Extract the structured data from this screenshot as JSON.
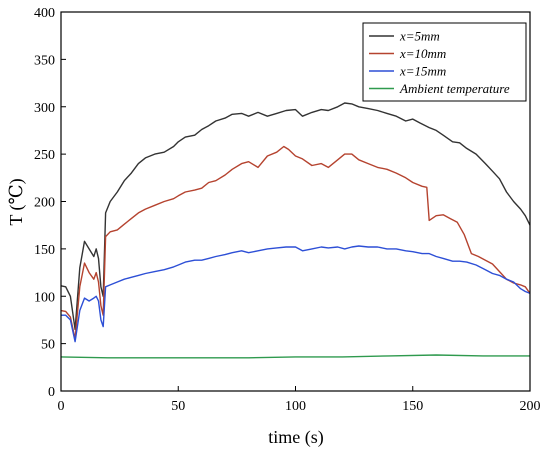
{
  "chart_data": {
    "type": "line",
    "xlabel": "time (s)",
    "ylabel": "T (℃)",
    "xlim": [
      0,
      200
    ],
    "ylim": [
      0,
      400
    ],
    "x_ticks": [
      "0",
      "50",
      "100",
      "150",
      "200"
    ],
    "y_ticks": [
      "0",
      "50",
      "100",
      "150",
      "200",
      "250",
      "300",
      "350",
      "400"
    ],
    "grid": false,
    "legend_position": "top-right",
    "series": [
      {
        "name": "x=5mm",
        "color": "#333333",
        "points": [
          [
            0,
            111
          ],
          [
            2,
            110
          ],
          [
            4,
            100
          ],
          [
            6,
            65
          ],
          [
            8,
            130
          ],
          [
            10,
            158
          ],
          [
            12,
            150
          ],
          [
            14,
            142
          ],
          [
            15,
            150
          ],
          [
            16,
            140
          ],
          [
            17,
            110
          ],
          [
            18,
            100
          ],
          [
            19,
            188
          ],
          [
            21,
            200
          ],
          [
            24,
            210
          ],
          [
            27,
            222
          ],
          [
            30,
            230
          ],
          [
            33,
            240
          ],
          [
            36,
            246
          ],
          [
            40,
            250
          ],
          [
            44,
            252
          ],
          [
            48,
            258
          ],
          [
            50,
            263
          ],
          [
            53,
            268
          ],
          [
            57,
            270
          ],
          [
            60,
            276
          ],
          [
            63,
            280
          ],
          [
            66,
            285
          ],
          [
            70,
            288
          ],
          [
            73,
            292
          ],
          [
            77,
            293
          ],
          [
            80,
            290
          ],
          [
            84,
            294
          ],
          [
            88,
            290
          ],
          [
            92,
            293
          ],
          [
            96,
            296
          ],
          [
            100,
            297
          ],
          [
            103,
            290
          ],
          [
            107,
            294
          ],
          [
            111,
            297
          ],
          [
            114,
            296
          ],
          [
            118,
            300
          ],
          [
            121,
            304
          ],
          [
            124,
            303
          ],
          [
            127,
            300
          ],
          [
            131,
            298
          ],
          [
            135,
            296
          ],
          [
            139,
            293
          ],
          [
            143,
            290
          ],
          [
            147,
            285
          ],
          [
            150,
            287
          ],
          [
            153,
            283
          ],
          [
            157,
            278
          ],
          [
            160,
            275
          ],
          [
            163,
            270
          ],
          [
            167,
            263
          ],
          [
            170,
            262
          ],
          [
            173,
            256
          ],
          [
            177,
            250
          ],
          [
            181,
            240
          ],
          [
            184,
            232
          ],
          [
            187,
            224
          ],
          [
            190,
            210
          ],
          [
            193,
            200
          ],
          [
            196,
            192
          ],
          [
            198,
            185
          ],
          [
            200,
            175
          ]
        ]
      },
      {
        "name": "x=10mm",
        "color": "#b5432f",
        "points": [
          [
            0,
            85
          ],
          [
            2,
            84
          ],
          [
            4,
            78
          ],
          [
            6,
            55
          ],
          [
            8,
            110
          ],
          [
            10,
            135
          ],
          [
            12,
            125
          ],
          [
            14,
            118
          ],
          [
            15,
            125
          ],
          [
            16,
            115
          ],
          [
            17,
            90
          ],
          [
            18,
            80
          ],
          [
            19,
            163
          ],
          [
            21,
            168
          ],
          [
            24,
            170
          ],
          [
            27,
            176
          ],
          [
            30,
            182
          ],
          [
            33,
            188
          ],
          [
            36,
            192
          ],
          [
            40,
            196
          ],
          [
            44,
            200
          ],
          [
            48,
            203
          ],
          [
            50,
            206
          ],
          [
            53,
            210
          ],
          [
            57,
            212
          ],
          [
            60,
            214
          ],
          [
            63,
            220
          ],
          [
            66,
            222
          ],
          [
            70,
            228
          ],
          [
            73,
            234
          ],
          [
            77,
            240
          ],
          [
            80,
            242
          ],
          [
            84,
            236
          ],
          [
            88,
            248
          ],
          [
            92,
            252
          ],
          [
            95,
            258
          ],
          [
            97,
            255
          ],
          [
            100,
            248
          ],
          [
            103,
            245
          ],
          [
            107,
            238
          ],
          [
            111,
            240
          ],
          [
            114,
            236
          ],
          [
            118,
            244
          ],
          [
            121,
            250
          ],
          [
            124,
            250
          ],
          [
            127,
            244
          ],
          [
            131,
            240
          ],
          [
            135,
            236
          ],
          [
            139,
            234
          ],
          [
            143,
            230
          ],
          [
            147,
            225
          ],
          [
            150,
            220
          ],
          [
            154,
            216
          ],
          [
            156,
            215
          ],
          [
            157,
            180
          ],
          [
            160,
            185
          ],
          [
            163,
            186
          ],
          [
            166,
            182
          ],
          [
            169,
            178
          ],
          [
            172,
            165
          ],
          [
            175,
            145
          ],
          [
            178,
            142
          ],
          [
            181,
            138
          ],
          [
            184,
            134
          ],
          [
            187,
            126
          ],
          [
            190,
            118
          ],
          [
            193,
            114
          ],
          [
            196,
            112
          ],
          [
            198,
            110
          ],
          [
            200,
            103
          ]
        ]
      },
      {
        "name": "x=15mm",
        "color": "#2d4fd6",
        "points": [
          [
            0,
            80
          ],
          [
            2,
            80
          ],
          [
            4,
            75
          ],
          [
            6,
            52
          ],
          [
            8,
            85
          ],
          [
            10,
            98
          ],
          [
            12,
            95
          ],
          [
            14,
            98
          ],
          [
            15,
            100
          ],
          [
            16,
            95
          ],
          [
            17,
            75
          ],
          [
            18,
            68
          ],
          [
            19,
            110
          ],
          [
            21,
            112
          ],
          [
            24,
            115
          ],
          [
            27,
            118
          ],
          [
            30,
            120
          ],
          [
            33,
            122
          ],
          [
            36,
            124
          ],
          [
            40,
            126
          ],
          [
            44,
            128
          ],
          [
            48,
            131
          ],
          [
            50,
            133
          ],
          [
            53,
            136
          ],
          [
            57,
            138
          ],
          [
            60,
            138
          ],
          [
            63,
            140
          ],
          [
            66,
            142
          ],
          [
            70,
            144
          ],
          [
            73,
            146
          ],
          [
            77,
            148
          ],
          [
            80,
            146
          ],
          [
            84,
            148
          ],
          [
            88,
            150
          ],
          [
            92,
            151
          ],
          [
            96,
            152
          ],
          [
            100,
            152
          ],
          [
            103,
            148
          ],
          [
            107,
            150
          ],
          [
            111,
            152
          ],
          [
            114,
            151
          ],
          [
            118,
            152
          ],
          [
            121,
            150
          ],
          [
            124,
            152
          ],
          [
            127,
            153
          ],
          [
            131,
            152
          ],
          [
            135,
            152
          ],
          [
            139,
            150
          ],
          [
            143,
            150
          ],
          [
            147,
            148
          ],
          [
            150,
            147
          ],
          [
            154,
            145
          ],
          [
            157,
            145
          ],
          [
            160,
            142
          ],
          [
            163,
            140
          ],
          [
            167,
            137
          ],
          [
            170,
            137
          ],
          [
            173,
            136
          ],
          [
            177,
            133
          ],
          [
            181,
            128
          ],
          [
            184,
            124
          ],
          [
            187,
            122
          ],
          [
            190,
            118
          ],
          [
            193,
            115
          ],
          [
            196,
            108
          ],
          [
            198,
            105
          ],
          [
            200,
            103
          ]
        ]
      },
      {
        "name": "Ambient temperature",
        "color": "#2f9a4e",
        "points": [
          [
            0,
            36
          ],
          [
            20,
            35
          ],
          [
            40,
            35
          ],
          [
            60,
            35
          ],
          [
            80,
            35
          ],
          [
            100,
            36
          ],
          [
            120,
            36
          ],
          [
            140,
            37
          ],
          [
            160,
            38
          ],
          [
            180,
            37
          ],
          [
            200,
            37
          ]
        ]
      }
    ]
  }
}
